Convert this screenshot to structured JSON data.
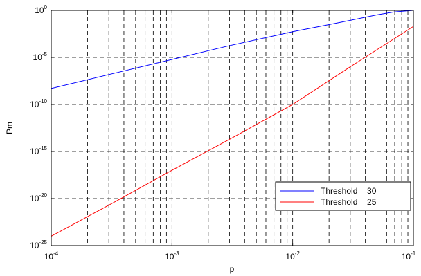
{
  "chart_data": {
    "type": "line",
    "title": "",
    "xlabel": "p",
    "ylabel": "Pm",
    "x_scale": "log",
    "y_scale": "log",
    "xlim": [
      0.0001,
      0.1
    ],
    "ylim": [
      1e-25,
      1
    ],
    "x_ticks": [
      {
        "value": 0.0001,
        "base": "10",
        "exp": "-4"
      },
      {
        "value": 0.001,
        "base": "10",
        "exp": "-3"
      },
      {
        "value": 0.01,
        "base": "10",
        "exp": "-2"
      },
      {
        "value": 0.1,
        "base": "10",
        "exp": "-1"
      }
    ],
    "y_ticks": [
      {
        "value": 1,
        "base": "10",
        "exp": "0"
      },
      {
        "value": 1e-05,
        "base": "10",
        "exp": "-5"
      },
      {
        "value": 1e-10,
        "base": "10",
        "exp": "-10"
      },
      {
        "value": 1e-15,
        "base": "10",
        "exp": "-15"
      },
      {
        "value": 1e-20,
        "base": "10",
        "exp": "-20"
      },
      {
        "value": 1e-25,
        "base": "10",
        "exp": "-25"
      }
    ],
    "grid": true,
    "legend_position": "lower-right",
    "series": [
      {
        "name": "Threshold = 30",
        "color": "#0000ff",
        "x": [
          0.0001,
          0.0003,
          0.001,
          0.003,
          0.01,
          0.02,
          0.03,
          0.05,
          0.07,
          0.1
        ],
        "y": [
          5e-09,
          1.5e-07,
          6e-06,
          0.00018,
          0.0055,
          0.031,
          0.088,
          0.34,
          0.7,
          1
        ]
      },
      {
        "name": "Threshold = 25",
        "color": "#ff0000",
        "x": [
          0.0001,
          0.0003,
          0.001,
          0.003,
          0.01,
          0.03,
          0.1
        ],
        "y": [
          1e-24,
          2e-21,
          1e-17,
          2e-14,
          1e-10,
          1e-06,
          0.02
        ]
      }
    ]
  }
}
